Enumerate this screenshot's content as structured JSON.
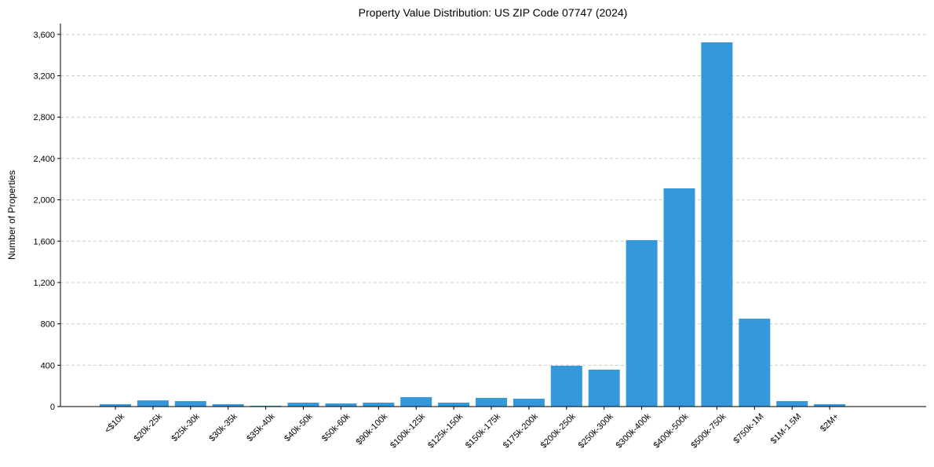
{
  "chart_data": {
    "type": "bar",
    "title": "Property Value Distribution: US ZIP Code 07747 (2024)",
    "xlabel": "",
    "ylabel": "Number of Properties",
    "ylim": [
      0,
      3705
    ],
    "yticks": [
      0,
      400,
      800,
      1200,
      1600,
      2000,
      2400,
      2800,
      3200,
      3600
    ],
    "ytick_labels": [
      "0",
      "400",
      "800",
      "1,200",
      "1,600",
      "2,000",
      "2,400",
      "2,800",
      "3,200",
      "3,600"
    ],
    "grid": "y-dashed",
    "bar_color": "#3498db",
    "categories": [
      "<$10k",
      "$20k-25k",
      "$25k-30k",
      "$30k-35k",
      "$35k-40k",
      "$40k-50k",
      "$50k-60k",
      "$90k-100k",
      "$100k-125k",
      "$125k-150k",
      "$150k-175k",
      "$175k-200k",
      "$200k-250k",
      "$250k-300k",
      "$300k-400k",
      "$400k-500k",
      "$500k-750k",
      "$750k-1M",
      "$1M-1.5M",
      "$2M+"
    ],
    "values": [
      23,
      60,
      53,
      23,
      8,
      38,
      30,
      38,
      91,
      38,
      84,
      76,
      395,
      357,
      1610,
      2111,
      3523,
      850,
      53,
      23
    ]
  }
}
